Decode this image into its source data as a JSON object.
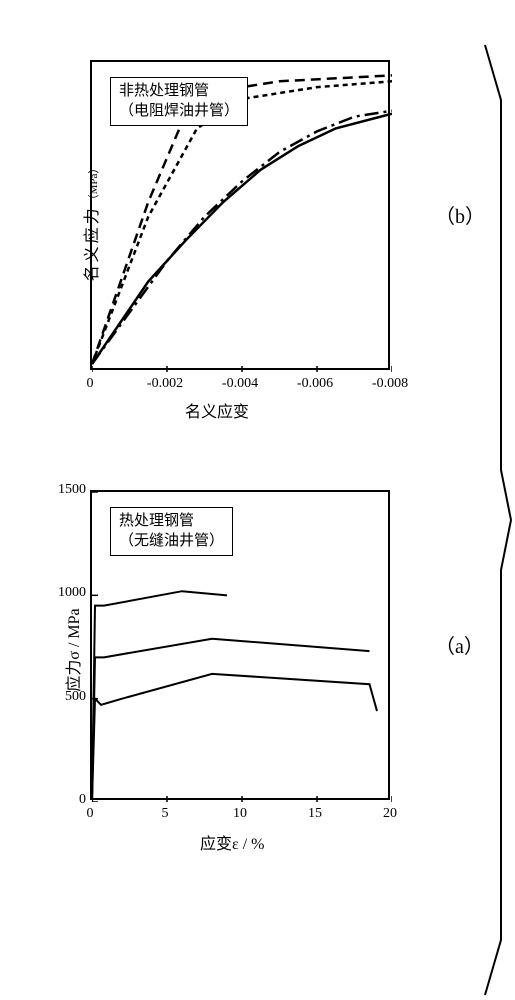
{
  "figure": {
    "background_color": "#ffffff",
    "stroke_color": "#000000",
    "bracket_stroke_width": 2
  },
  "chart_a": {
    "type": "line",
    "title_box": {
      "line1": "热处理钢管",
      "line2": "（无缝油井管）"
    },
    "ylabel": "应力σ / MPa",
    "xlabel": "应变ε / %",
    "subplot_tag": "（a）",
    "xlim": [
      0,
      20
    ],
    "ylim": [
      0,
      1500
    ],
    "xticks": [
      0,
      5,
      10,
      15,
      20
    ],
    "yticks": [
      0,
      500,
      1000,
      1500
    ],
    "line_color": "#000000",
    "line_width": 2,
    "curves": [
      {
        "pts": [
          [
            0,
            0
          ],
          [
            0.2,
            950
          ],
          [
            0.8,
            950
          ],
          [
            6,
            1020
          ],
          [
            9,
            1000
          ]
        ]
      },
      {
        "pts": [
          [
            0,
            0
          ],
          [
            0.2,
            700
          ],
          [
            0.8,
            700
          ],
          [
            8,
            790
          ],
          [
            18.5,
            730
          ]
        ]
      },
      {
        "pts": [
          [
            0,
            0
          ],
          [
            0.2,
            500
          ],
          [
            0.6,
            470
          ],
          [
            2,
            500
          ],
          [
            8,
            620
          ],
          [
            18.5,
            570
          ],
          [
            19,
            440
          ]
        ]
      }
    ]
  },
  "chart_b": {
    "type": "line",
    "title_box": {
      "line1": "非热处理钢管",
      "line2": "（电阻焊油井管）"
    },
    "ylabel_cjk": "名义应力",
    "ylabel_unit": "（MPa）",
    "xlabel": "名义应变",
    "subplot_tag": "（b）",
    "xlim": [
      0,
      -0.008
    ],
    "xticks": [
      0,
      -0.002,
      -0.004,
      -0.006,
      -0.008
    ],
    "line_color": "#000000",
    "line_width": 2.5,
    "curves": [
      {
        "dash": "10,6",
        "pts": [
          [
            0,
            0
          ],
          [
            -0.0015,
            0.55
          ],
          [
            -0.0025,
            0.85
          ],
          [
            -0.0035,
            0.93
          ],
          [
            -0.005,
            0.96
          ],
          [
            -0.008,
            0.98
          ]
        ]
      },
      {
        "dash": "5,4",
        "pts": [
          [
            0,
            0
          ],
          [
            -0.0015,
            0.5
          ],
          [
            -0.0028,
            0.8
          ],
          [
            -0.004,
            0.9
          ],
          [
            -0.006,
            0.94
          ],
          [
            -0.008,
            0.96
          ]
        ]
      },
      {
        "dash": "14,5,3,5",
        "pts": [
          [
            0,
            0
          ],
          [
            -0.002,
            0.35
          ],
          [
            -0.003,
            0.5
          ],
          [
            -0.004,
            0.62
          ],
          [
            -0.005,
            0.72
          ],
          [
            -0.006,
            0.79
          ],
          [
            -0.007,
            0.84
          ],
          [
            -0.008,
            0.86
          ]
        ]
      },
      {
        "dash": "",
        "pts": [
          [
            0,
            0
          ],
          [
            -0.0015,
            0.28
          ],
          [
            -0.0025,
            0.42
          ],
          [
            -0.0035,
            0.55
          ],
          [
            -0.0045,
            0.66
          ],
          [
            -0.0055,
            0.74
          ],
          [
            -0.0065,
            0.8
          ],
          [
            -0.008,
            0.85
          ]
        ]
      }
    ]
  }
}
